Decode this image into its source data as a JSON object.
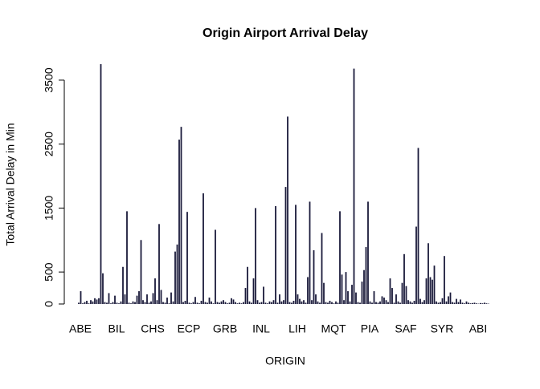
{
  "chart_data": {
    "type": "bar",
    "title": "Origin Airport Arrival Delay",
    "x_label": "ORIGIN",
    "y_label": "Total Arrival Delay in Min",
    "color": "#1a1a3a",
    "ylim": [
      0,
      3750
    ],
    "yticks": [
      0,
      500,
      1500,
      2500,
      3500
    ],
    "categories": [
      "ABE",
      null,
      null,
      null,
      null,
      null,
      null,
      null,
      null,
      null,
      null,
      null,
      null,
      null,
      null,
      null,
      null,
      null,
      "BIL",
      null,
      null,
      null,
      null,
      null,
      null,
      null,
      null,
      null,
      null,
      null,
      null,
      null,
      null,
      null,
      null,
      null,
      "CHS",
      null,
      null,
      null,
      null,
      null,
      null,
      null,
      null,
      null,
      null,
      null,
      null,
      null,
      null,
      null,
      null,
      null,
      "ECP",
      null,
      null,
      null,
      null,
      null,
      null,
      null,
      null,
      null,
      null,
      null,
      null,
      null,
      null,
      null,
      null,
      null,
      "GRB",
      null,
      null,
      null,
      null,
      null,
      null,
      null,
      null,
      null,
      null,
      null,
      null,
      null,
      null,
      null,
      null,
      null,
      "INL",
      null,
      null,
      null,
      null,
      null,
      null,
      null,
      null,
      null,
      null,
      null,
      null,
      null,
      null,
      null,
      null,
      null,
      "LIH",
      null,
      null,
      null,
      null,
      null,
      null,
      null,
      null,
      null,
      null,
      null,
      null,
      null,
      null,
      null,
      null,
      null,
      "MQT",
      null,
      null,
      null,
      null,
      null,
      null,
      null,
      null,
      null,
      null,
      null,
      null,
      null,
      null,
      null,
      null,
      null,
      "PIA",
      null,
      null,
      null,
      null,
      null,
      null,
      null,
      null,
      null,
      null,
      null,
      null,
      null,
      null,
      null,
      null,
      null,
      "SAF",
      null,
      null,
      null,
      null,
      null,
      null,
      null,
      null,
      null,
      null,
      null,
      null,
      null,
      null,
      null,
      null,
      null,
      "SYR",
      null,
      null,
      null,
      null,
      null,
      null,
      null,
      null,
      null,
      null,
      null,
      null,
      null,
      null,
      null,
      null,
      null,
      "ABI",
      null,
      null,
      null,
      null,
      null,
      null
    ],
    "values": [
      20,
      200,
      10,
      30,
      50,
      10,
      60,
      40,
      90,
      70,
      90,
      3750,
      480,
      30,
      20,
      170,
      10,
      30,
      130,
      20,
      10,
      40,
      580,
      150,
      1450,
      20,
      10,
      40,
      30,
      130,
      200,
      1000,
      60,
      30,
      150,
      20,
      40,
      170,
      400,
      60,
      1250,
      220,
      30,
      20,
      100,
      10,
      180,
      40,
      820,
      930,
      2570,
      2770,
      30,
      50,
      1440,
      20,
      10,
      30,
      110,
      20,
      10,
      50,
      1730,
      30,
      20,
      100,
      40,
      10,
      1160,
      30,
      20,
      40,
      60,
      30,
      10,
      20,
      90,
      70,
      30,
      10,
      20,
      10,
      30,
      250,
      580,
      40,
      20,
      400,
      1500,
      60,
      20,
      30,
      270,
      20,
      10,
      40,
      30,
      60,
      1530,
      20,
      150,
      40,
      60,
      1830,
      2930,
      30,
      20,
      50,
      1550,
      150,
      80,
      40,
      60,
      20,
      420,
      1600,
      60,
      840,
      150,
      40,
      20,
      1110,
      330,
      30,
      20,
      50,
      30,
      10,
      40,
      20,
      1450,
      460,
      60,
      500,
      200,
      40,
      300,
      3680,
      180,
      30,
      20,
      350,
      530,
      890,
      1600,
      40,
      20,
      200,
      30,
      20,
      40,
      120,
      100,
      60,
      30,
      400,
      250,
      20,
      150,
      40,
      20,
      330,
      780,
      280,
      60,
      40,
      20,
      50,
      1210,
      2440,
      80,
      30,
      60,
      400,
      950,
      420,
      380,
      600,
      40,
      20,
      30,
      90,
      750,
      40,
      120,
      180,
      30,
      20,
      80,
      30,
      70,
      20,
      10,
      40,
      20,
      10,
      15,
      20,
      10,
      5,
      15,
      10,
      20,
      10,
      5
    ]
  }
}
